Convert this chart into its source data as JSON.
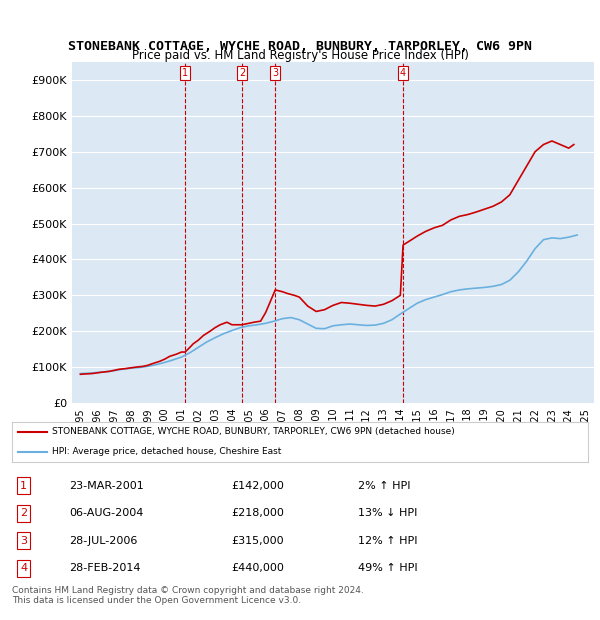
{
  "title": "STONEBANK COTTAGE, WYCHE ROAD, BUNBURY, TARPORLEY, CW6 9PN",
  "subtitle": "Price paid vs. HM Land Registry's House Price Index (HPI)",
  "legend_line1": "STONEBANK COTTAGE, WYCHE ROAD, BUNBURY, TARPORLEY, CW6 9PN (detached house)",
  "legend_line2": "HPI: Average price, detached house, Cheshire East",
  "footer1": "Contains HM Land Registry data © Crown copyright and database right 2024.",
  "footer2": "This data is licensed under the Open Government Licence v3.0.",
  "transactions": [
    {
      "num": 1,
      "date": "23-MAR-2001",
      "price": 142000,
      "pct": "2%",
      "dir": "↑",
      "year": 2001.22
    },
    {
      "num": 2,
      "date": "06-AUG-2004",
      "price": 218000,
      "pct": "13%",
      "dir": "↓",
      "year": 2004.59
    },
    {
      "num": 3,
      "date": "28-JUL-2006",
      "price": 315000,
      "pct": "12%",
      "dir": "↑",
      "year": 2006.57
    },
    {
      "num": 4,
      "date": "28-FEB-2014",
      "price": 440000,
      "pct": "49%",
      "dir": "↑",
      "year": 2014.16
    }
  ],
  "ylabel_ticks": [
    0,
    100000,
    200000,
    300000,
    400000,
    500000,
    600000,
    700000,
    800000,
    900000
  ],
  "ylabel_labels": [
    "£0",
    "£100K",
    "£200K",
    "£300K",
    "£400K",
    "£500K",
    "£600K",
    "£700K",
    "£800K",
    "£900K"
  ],
  "xlim": [
    1994.5,
    2025.5
  ],
  "ylim": [
    0,
    950000
  ],
  "hpi_color": "#6ab0de",
  "price_color": "#cc0000",
  "vline_color": "#cc0000",
  "background_color": "#dce9f5",
  "plot_bg": "#dce9f5",
  "grid_color": "#ffffff",
  "title_fontsize": 10,
  "subtitle_fontsize": 9,
  "hpi_data": {
    "years": [
      1995,
      1995.5,
      1996,
      1996.5,
      1997,
      1997.5,
      1998,
      1998.5,
      1999,
      1999.5,
      2000,
      2000.5,
      2001,
      2001.5,
      2002,
      2002.5,
      2003,
      2003.5,
      2004,
      2004.5,
      2005,
      2005.5,
      2006,
      2006.5,
      2007,
      2007.5,
      2008,
      2008.5,
      2009,
      2009.5,
      2010,
      2010.5,
      2011,
      2011.5,
      2012,
      2012.5,
      2013,
      2013.5,
      2014,
      2014.5,
      2015,
      2015.5,
      2016,
      2016.5,
      2017,
      2017.5,
      2018,
      2018.5,
      2019,
      2019.5,
      2020,
      2020.5,
      2021,
      2021.5,
      2022,
      2022.5,
      2023,
      2023.5,
      2024,
      2024.5
    ],
    "values": [
      82000,
      83000,
      85000,
      87000,
      90000,
      94000,
      97000,
      99000,
      102000,
      107000,
      113000,
      120000,
      128000,
      140000,
      155000,
      170000,
      182000,
      193000,
      202000,
      210000,
      215000,
      218000,
      222000,
      228000,
      235000,
      238000,
      232000,
      220000,
      208000,
      207000,
      215000,
      218000,
      220000,
      218000,
      216000,
      217000,
      222000,
      232000,
      248000,
      263000,
      278000,
      288000,
      295000,
      302000,
      310000,
      315000,
      318000,
      320000,
      322000,
      325000,
      330000,
      342000,
      365000,
      395000,
      430000,
      455000,
      460000,
      458000,
      462000,
      468000
    ]
  },
  "price_data": {
    "years": [
      1995,
      1995.3,
      1995.7,
      1996,
      1996.3,
      1996.7,
      1997,
      1997.3,
      1997.7,
      1998,
      1998.3,
      1998.7,
      1999,
      1999.3,
      1999.7,
      2000,
      2000.3,
      2000.7,
      2001,
      2001.22,
      2001.5,
      2001.7,
      2002,
      2002.3,
      2002.7,
      2003,
      2003.3,
      2003.7,
      2004,
      2004.59,
      2005,
      2005.3,
      2005.7,
      2006,
      2006.57,
      2007,
      2007.3,
      2007.7,
      2008,
      2008.5,
      2009,
      2009.5,
      2010,
      2010.5,
      2011,
      2011.5,
      2012,
      2012.5,
      2013,
      2013.5,
      2014,
      2014.16,
      2014.5,
      2015,
      2015.5,
      2016,
      2016.5,
      2017,
      2017.5,
      2018,
      2018.5,
      2019,
      2019.5,
      2020,
      2020.5,
      2021,
      2021.5,
      2022,
      2022.5,
      2023,
      2023.5,
      2024,
      2024.3
    ],
    "values": [
      80000,
      81000,
      82000,
      84000,
      86000,
      88000,
      91000,
      94000,
      96000,
      98000,
      100000,
      102000,
      105000,
      110000,
      116000,
      122000,
      130000,
      136000,
      142000,
      142000,
      155000,
      165000,
      175000,
      188000,
      200000,
      210000,
      218000,
      225000,
      218000,
      218000,
      222000,
      225000,
      228000,
      252000,
      315000,
      310000,
      305000,
      300000,
      295000,
      270000,
      255000,
      260000,
      272000,
      280000,
      278000,
      275000,
      272000,
      270000,
      275000,
      285000,
      300000,
      440000,
      450000,
      465000,
      478000,
      488000,
      495000,
      510000,
      520000,
      525000,
      532000,
      540000,
      548000,
      560000,
      580000,
      620000,
      660000,
      700000,
      720000,
      730000,
      720000,
      710000,
      720000
    ]
  }
}
